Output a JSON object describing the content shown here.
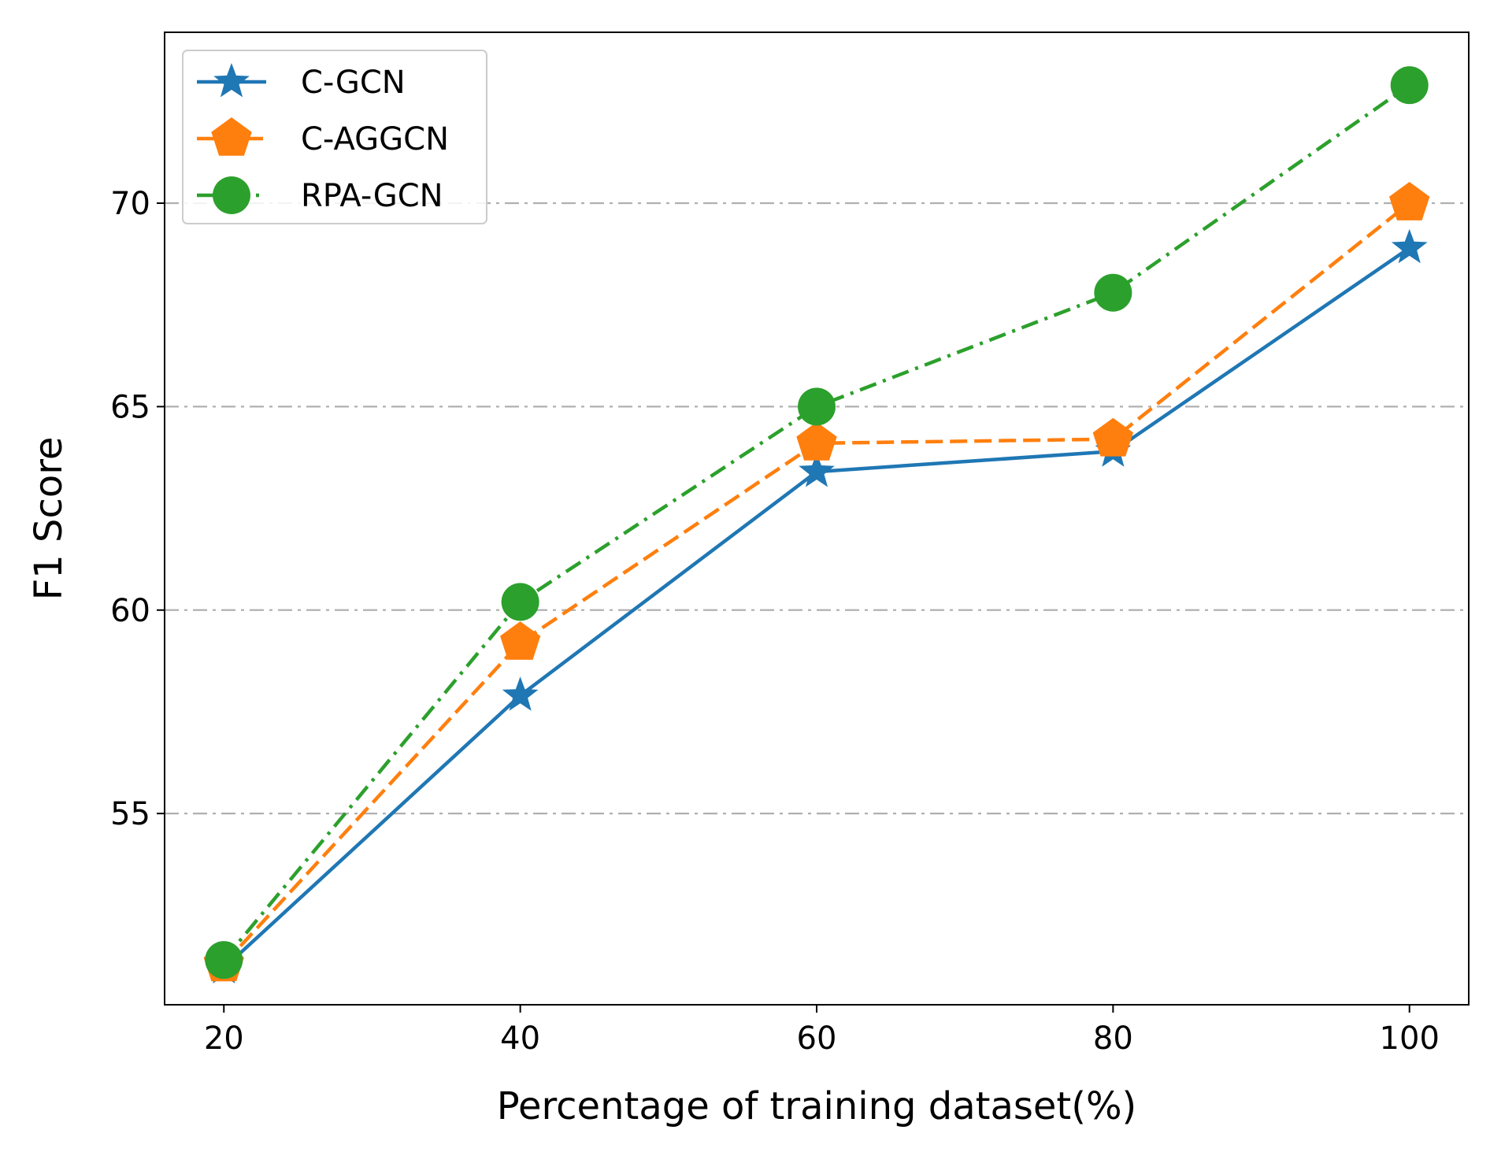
{
  "chart_data": {
    "type": "line",
    "title": "",
    "xlabel": "Percentage of training dataset(%)",
    "ylabel": "F1 Score",
    "x": [
      20,
      40,
      60,
      80,
      100
    ],
    "x_ticks": [
      "20",
      "40",
      "60",
      "80",
      "100"
    ],
    "y_ticks": [
      55,
      60,
      65,
      70
    ],
    "y_tick_labels": [
      "55",
      "60",
      "65",
      "70"
    ],
    "xlim": [
      16,
      104
    ],
    "ylim": [
      50.3,
      74.2
    ],
    "grid": "horizontal dash-dot, light gray",
    "legend_position": "top-left",
    "series": [
      {
        "name": "C-GCN",
        "values": [
          51.2,
          57.9,
          63.4,
          63.9,
          68.9
        ],
        "color": "#1f77b4",
        "linestyle": "solid",
        "marker": "star"
      },
      {
        "name": "C-AGGCN",
        "values": [
          51.3,
          59.2,
          64.1,
          64.2,
          70.0
        ],
        "color": "#ff7f0e",
        "linestyle": "dashed",
        "marker": "pentagon"
      },
      {
        "name": "RPA-GCN",
        "values": [
          51.4,
          60.2,
          65.0,
          67.8,
          72.9
        ],
        "color": "#2ca02c",
        "linestyle": "dash-dot",
        "marker": "circle"
      }
    ]
  }
}
